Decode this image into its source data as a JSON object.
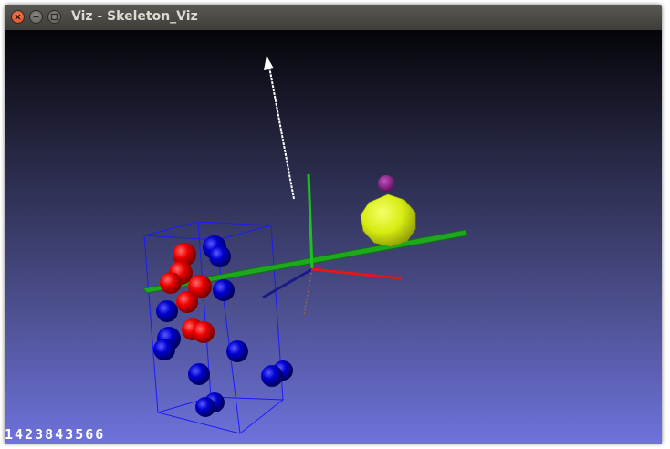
{
  "window": {
    "title": "Viz - Skeleton_Viz",
    "buttons": [
      "close",
      "minimize",
      "maximize"
    ]
  },
  "viewer": {
    "frame_counter": "1423843566",
    "background_top": "#050509",
    "background_bottom": "#6e72db"
  },
  "scene": {
    "axes_colors": {
      "x": "#e01818",
      "y": "#19c419",
      "z": "#1a1a8a"
    },
    "joint_colors": {
      "red": "#ee0000",
      "blue": "#0000cc"
    },
    "ellipsoid_color": "#d8ee10",
    "head_color": "#8b0e8b",
    "arrow_color": "#ffffff",
    "box_color": "#1a1aff",
    "plane_color": "#1fa01f"
  }
}
